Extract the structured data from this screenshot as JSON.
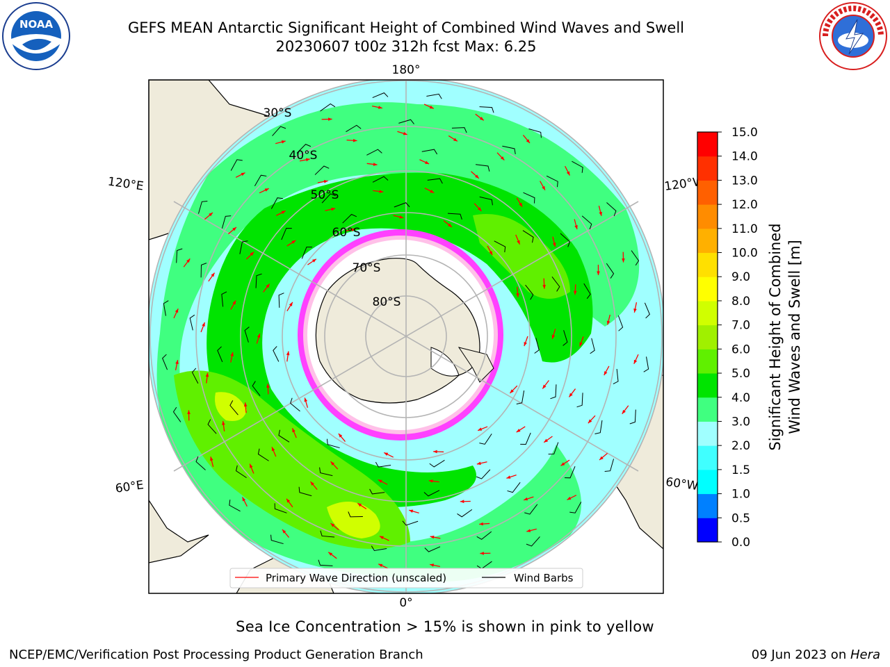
{
  "header": {
    "title_line1": "GEFS MEAN Antarctic Significant Height of Combined Wind Waves and Swell",
    "title_line2": "20230607 t00z 312h fcst   Max: 6.25"
  },
  "logos": {
    "left": "NOAA",
    "right": "NATIONAL WEATHER SERVICE"
  },
  "map": {
    "projection": "south-polar-stereographic",
    "longitude_labels": [
      "180°",
      "120°E",
      "120°W",
      "60°E",
      "60°W",
      "0°"
    ],
    "latitude_labels": [
      "30°S",
      "40°S",
      "50°S",
      "60°S",
      "70°S",
      "80°S"
    ]
  },
  "legend": {
    "wave_direction": "Primary Wave Direction (unscaled)",
    "wind_barbs": "Wind Barbs"
  },
  "colorbar": {
    "label_line1": "Significant Height of Combined",
    "label_line2": "Wind Waves and Swell [m]",
    "ticks": [
      "0.0",
      "0.5",
      "1.0",
      "1.5",
      "2.0",
      "3.0",
      "4.0",
      "5.0",
      "6.0",
      "7.0",
      "8.0",
      "9.0",
      "10.0",
      "11.0",
      "12.0",
      "13.0",
      "14.0",
      "15.0"
    ],
    "colors": [
      "#0000ff",
      "#0080ff",
      "#00ffff",
      "#40ffff",
      "#a0ffff",
      "#40ff80",
      "#00e400",
      "#60f000",
      "#a0f000",
      "#d0ff00",
      "#ffff00",
      "#ffe000",
      "#ffb000",
      "#ff8c00",
      "#ff6000",
      "#ff3000",
      "#ff0000"
    ]
  },
  "note": "Sea Ice Concentration > 15% is shown in pink to yellow",
  "footer": {
    "left": "NCEP/EMC/Verification Post Processing Product Generation Branch",
    "date": "09 Jun 2023 on ",
    "host": "Hera"
  }
}
